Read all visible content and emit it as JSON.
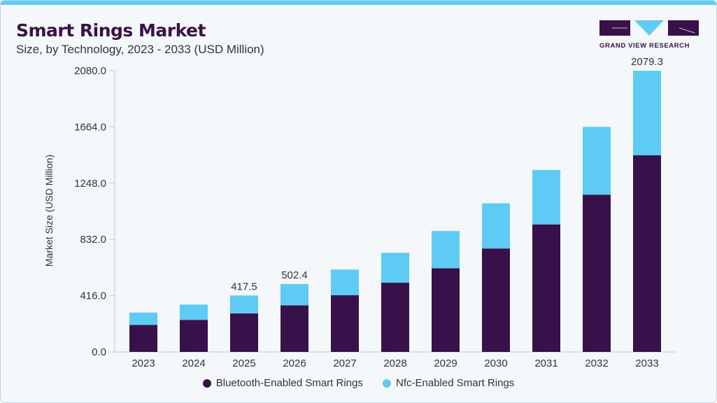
{
  "header": {
    "title": "Smart Rings Market",
    "subtitle": "Size, by Technology, 2023 - 2033 (USD Million)"
  },
  "logo": {
    "text": "GRAND VIEW RESEARCH"
  },
  "colors": {
    "bluetooth": "#38114a",
    "nfc": "#5ecbf5",
    "accent": "#5ecbf5"
  },
  "chart_data": {
    "type": "bar",
    "stacked": true,
    "title": "Smart Rings Market",
    "subtitle": "Size, by Technology, 2023 - 2033 (USD Million)",
    "xlabel": "",
    "ylabel": "Market Size (USD Million)",
    "ylim": [
      0,
      2080
    ],
    "yticks": [
      "0.0",
      "416.0",
      "832.0",
      "1248.0",
      "1664.0",
      "2080.0"
    ],
    "categories": [
      "2023",
      "2024",
      "2025",
      "2026",
      "2027",
      "2028",
      "2029",
      "2030",
      "2031",
      "2032",
      "2033"
    ],
    "series": [
      {
        "name": "Bluetooth-Enabled Smart Rings",
        "values": [
          200,
          237,
          285,
          344,
          420,
          512,
          619,
          765,
          943,
          1163,
          1454
        ]
      },
      {
        "name": "Nfc-Enabled Smart Rings",
        "values": [
          91,
          113,
          132.5,
          158.4,
          189,
          221,
          275,
          334,
          403,
          501,
          625.3
        ]
      }
    ],
    "data_labels": {
      "2025": "417.5",
      "2026": "502.4",
      "2033": "2079.3"
    },
    "legend": "bottom",
    "grid": false
  }
}
